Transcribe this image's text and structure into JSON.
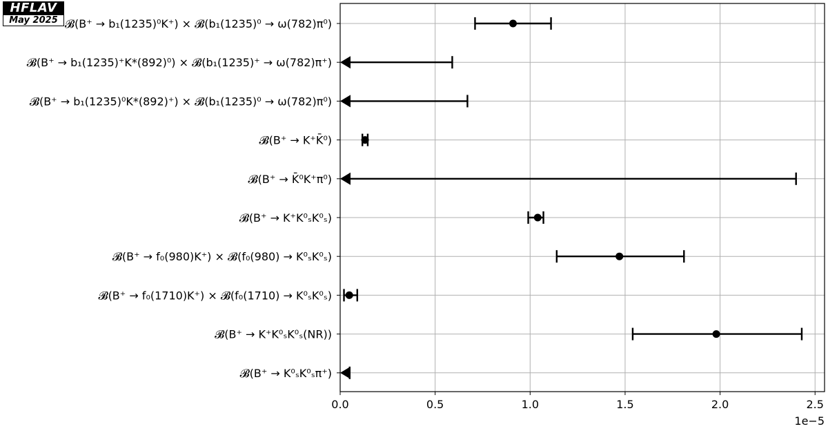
{
  "badge": {
    "title": "HFLAV",
    "date": "May 2025"
  },
  "chart_data": {
    "type": "errorbar",
    "xlim": [
      0,
      2.55e-05
    ],
    "x_ticks": [
      "0.0",
      "0.5",
      "1.0",
      "1.5",
      "2.0",
      "2.5"
    ],
    "x_tick_values": [
      0,
      5e-06,
      1e-05,
      1.5e-05,
      2e-05,
      2.5e-05
    ],
    "x_offset_label": "1e−5",
    "grid": true,
    "marker_color": "#000000",
    "grid_color": "#b0b0b0",
    "measurements": [
      {
        "label": "𝓑(B⁺ → b₁(1235)⁰K⁺) × 𝓑(b₁(1235)⁰ → ω(782)π⁰)",
        "kind": "value",
        "value": 9.1e-06,
        "low": 7.1e-06,
        "high": 1.11e-05
      },
      {
        "label": "𝓑(B⁺ → b₁(1235)⁺K*(892)⁰) × 𝓑(b₁(1235)⁺ → ω(782)π⁺)",
        "kind": "upper_limit",
        "limit": 5.9e-06
      },
      {
        "label": "𝓑(B⁺ → b₁(1235)⁰K*(892)⁺) × 𝓑(b₁(1235)⁰ → ω(782)π⁰)",
        "kind": "upper_limit",
        "limit": 6.7e-06
      },
      {
        "label": "𝓑(B⁺ → K⁺K̄⁰)",
        "kind": "value",
        "value": 1.31e-06,
        "low": 1.17e-06,
        "high": 1.45e-06
      },
      {
        "label": "𝓑(B⁺ → K̄⁰K⁺π⁰)",
        "kind": "upper_limit",
        "limit": 2.4e-05
      },
      {
        "label": "𝓑(B⁺ → K⁺K⁰ₛK⁰ₛ)",
        "kind": "value",
        "value": 1.04e-05,
        "low": 9.9e-06,
        "high": 1.07e-05
      },
      {
        "label": "𝓑(B⁺ → f₀(980)K⁺) × 𝓑(f₀(980) → K⁰ₛK⁰ₛ)",
        "kind": "value",
        "value": 1.47e-05,
        "low": 1.14e-05,
        "high": 1.81e-05
      },
      {
        "label": "𝓑(B⁺ → f₀(1710)K⁺) × 𝓑(f₀(1710) → K⁰ₛK⁰ₛ)",
        "kind": "value",
        "value": 4.8e-07,
        "low": 2e-07,
        "high": 9e-07
      },
      {
        "label": "𝓑(B⁺ → K⁺K⁰ₛK⁰ₛ(NR))",
        "kind": "value",
        "value": 1.98e-05,
        "low": 1.54e-05,
        "high": 2.43e-05
      },
      {
        "label": "𝓑(B⁺ → K⁰ₛK⁰ₛπ⁺)",
        "kind": "upper_limit",
        "limit": 5e-07
      }
    ]
  }
}
